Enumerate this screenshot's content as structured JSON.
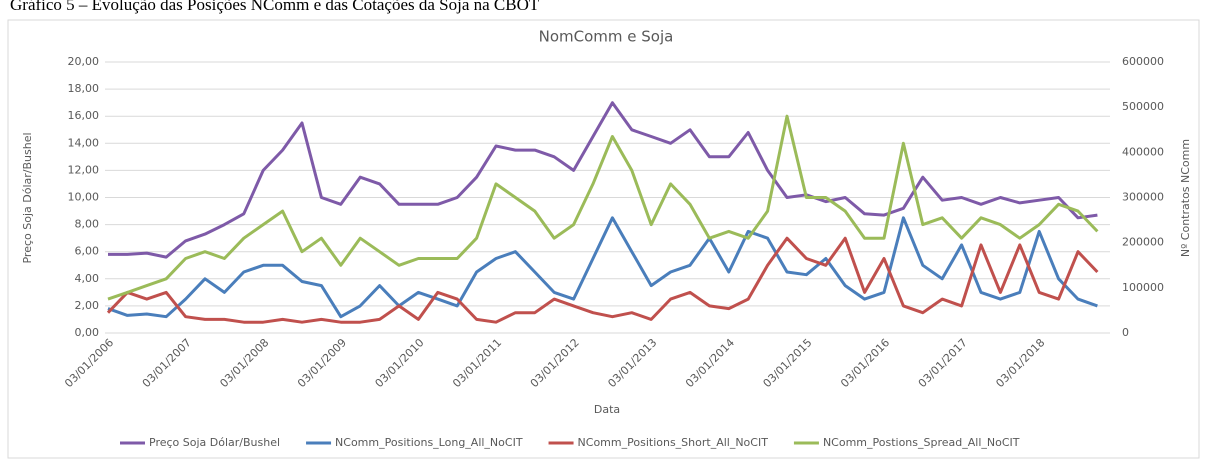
{
  "caption": "Gráfico 5 – Evolução das Posições NComm e das Cotações da Soja na CBOT",
  "chart_data": {
    "type": "line",
    "title": "NomComm e Soja",
    "x_label": "Data",
    "y_label": "Preço Soja Dólar/Bushel",
    "y2_label": "Nº Contratos NComm",
    "categories": [
      "03/01/2006",
      null,
      null,
      null,
      "03/01/2007",
      null,
      null,
      null,
      "03/01/2008",
      null,
      null,
      null,
      "03/01/2009",
      null,
      null,
      null,
      "03/01/2010",
      null,
      null,
      null,
      "03/01/2011",
      null,
      null,
      null,
      "03/01/2012",
      null,
      null,
      null,
      "03/01/2013",
      null,
      null,
      null,
      "03/01/2014",
      null,
      null,
      null,
      "03/01/2015",
      null,
      null,
      null,
      "03/01/2016",
      null,
      null,
      null,
      "03/01/2017",
      null,
      null,
      null,
      "03/01/2018",
      null,
      null,
      null
    ],
    "ylim": [
      0,
      20
    ],
    "yticks": [
      {
        "value": 0,
        "label": "0,00"
      },
      {
        "value": 2,
        "label": "2,00"
      },
      {
        "value": 4,
        "label": "4,00"
      },
      {
        "value": 6,
        "label": "6,00"
      },
      {
        "value": 8,
        "label": "8,00"
      },
      {
        "value": 10,
        "label": "10,00"
      },
      {
        "value": 12,
        "label": "12,00"
      },
      {
        "value": 14,
        "label": "14,00"
      },
      {
        "value": 16,
        "label": "16,00"
      },
      {
        "value": 18,
        "label": "18,00"
      },
      {
        "value": 20,
        "label": "20,00"
      }
    ],
    "y2lim": [
      0,
      600000
    ],
    "y2ticks": [
      0,
      100000,
      200000,
      300000,
      400000,
      500000,
      600000
    ],
    "grid": true,
    "legend": "bottom",
    "series": [
      {
        "name": "Preço Soja Dólar/Bushel",
        "color": "#7e5aa8",
        "values": [
          5.8,
          5.8,
          5.9,
          5.6,
          6.8,
          7.3,
          8.0,
          8.8,
          12.0,
          13.5,
          15.5,
          10.0,
          9.5,
          11.5,
          11.0,
          9.5,
          9.5,
          9.5,
          10.0,
          11.5,
          13.8,
          13.5,
          13.5,
          13.0,
          12.0,
          14.5,
          17.0,
          15.0,
          14.5,
          14.0,
          15.0,
          13.0,
          13.0,
          14.8,
          12.0,
          10.0,
          10.2,
          9.7,
          10.0,
          8.8,
          8.7,
          9.2,
          11.5,
          9.8,
          10.0,
          9.5,
          10.0,
          9.6,
          9.8,
          10.0,
          8.5,
          8.7
        ]
      },
      {
        "name": "NComm_Positions_Long_All_NoCIT",
        "color": "#4a7ebb",
        "axis": "y2",
        "values": [
          54000,
          39000,
          42000,
          36000,
          75000,
          120000,
          90000,
          135000,
          150000,
          150000,
          114000,
          105000,
          36000,
          60000,
          105000,
          60000,
          90000,
          75000,
          60000,
          135000,
          165000,
          180000,
          135000,
          90000,
          75000,
          165000,
          255000,
          180000,
          105000,
          135000,
          150000,
          210000,
          135000,
          225000,
          210000,
          135000,
          129000,
          165000,
          105000,
          75000,
          90000,
          255000,
          150000,
          120000,
          195000,
          90000,
          75000,
          90000,
          225000,
          120000,
          75000,
          60000
        ]
      },
      {
        "name": "NComm_Positions_Short_All_NoCIT",
        "color": "#c0504d",
        "axis": "y2",
        "values": [
          45000,
          90000,
          75000,
          90000,
          36000,
          30000,
          30000,
          24000,
          24000,
          30000,
          24000,
          30000,
          24000,
          24000,
          30000,
          60000,
          30000,
          90000,
          75000,
          30000,
          24000,
          45000,
          45000,
          75000,
          60000,
          45000,
          36000,
          45000,
          30000,
          75000,
          90000,
          60000,
          54000,
          75000,
          150000,
          210000,
          165000,
          150000,
          210000,
          90000,
          165000,
          60000,
          45000,
          75000,
          60000,
          195000,
          90000,
          195000,
          90000,
          75000,
          180000,
          135000
        ]
      },
      {
        "name": "NComm_Postions_Spread_All_NoCIT",
        "color": "#9bbb59",
        "axis": "y2",
        "values": [
          75000,
          90000,
          105000,
          120000,
          165000,
          180000,
          165000,
          210000,
          240000,
          270000,
          180000,
          210000,
          150000,
          210000,
          180000,
          150000,
          165000,
          165000,
          165000,
          210000,
          330000,
          300000,
          270000,
          210000,
          240000,
          330000,
          435000,
          360000,
          240000,
          330000,
          285000,
          210000,
          225000,
          210000,
          270000,
          480000,
          300000,
          300000,
          270000,
          210000,
          210000,
          420000,
          240000,
          255000,
          210000,
          255000,
          240000,
          210000,
          240000,
          285000,
          270000,
          225000
        ]
      }
    ]
  }
}
